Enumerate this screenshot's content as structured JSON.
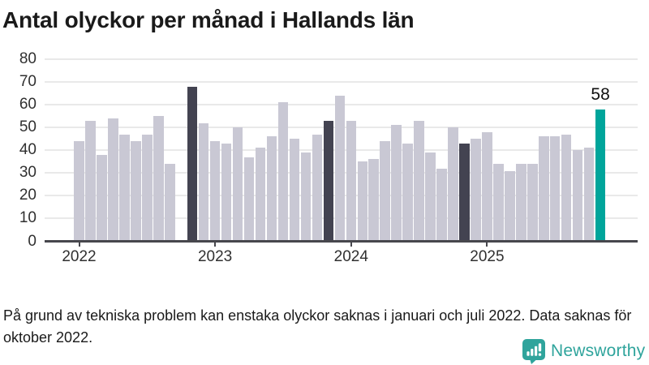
{
  "title": "Antal olyckor per månad i Hallands län",
  "footnote": "På grund av tekniska problem kan enstaka olyckor saknas i januari och juli 2022. Data saknas för oktober 2022.",
  "branding": {
    "name": "Newsworthy",
    "logo_icon": "newsworthy-pin-icon"
  },
  "colors": {
    "bar_default": "#c9c8d4",
    "bar_highlight_dark": "#434351",
    "bar_highlight_current": "#00a59b",
    "axis": "#47474d",
    "gridline": "#e9e9e9",
    "tick_text": "#303030",
    "title_text": "#1a1a1a",
    "logo_teal": "#2fa49c"
  },
  "chart_data": {
    "type": "bar",
    "title": "Antal olyckor per månad i Hallands län",
    "xlabel": "",
    "ylabel": "",
    "ylim": [
      0,
      80
    ],
    "yticks": [
      0,
      10,
      20,
      30,
      40,
      50,
      60,
      70,
      80
    ],
    "grid": true,
    "legend": "none",
    "x_year_ticks": [
      {
        "label": "2022",
        "month_index": 0
      },
      {
        "label": "2023",
        "month_index": 12
      },
      {
        "label": "2024",
        "month_index": 24
      },
      {
        "label": "2025",
        "month_index": 36
      }
    ],
    "months": [
      {
        "month": "2022-01",
        "value": 44
      },
      {
        "month": "2022-02",
        "value": 53
      },
      {
        "month": "2022-03",
        "value": 38
      },
      {
        "month": "2022-04",
        "value": 54
      },
      {
        "month": "2022-05",
        "value": 47
      },
      {
        "month": "2022-06",
        "value": 44
      },
      {
        "month": "2022-07",
        "value": 47
      },
      {
        "month": "2022-08",
        "value": 55
      },
      {
        "month": "2022-09",
        "value": 34
      },
      {
        "month": "2022-10",
        "value": null
      },
      {
        "month": "2022-11",
        "value": 68
      },
      {
        "month": "2022-12",
        "value": 52
      },
      {
        "month": "2023-01",
        "value": 44
      },
      {
        "month": "2023-02",
        "value": 43
      },
      {
        "month": "2023-03",
        "value": 50
      },
      {
        "month": "2023-04",
        "value": 37
      },
      {
        "month": "2023-05",
        "value": 41
      },
      {
        "month": "2023-06",
        "value": 46
      },
      {
        "month": "2023-07",
        "value": 61
      },
      {
        "month": "2023-08",
        "value": 45
      },
      {
        "month": "2023-09",
        "value": 39
      },
      {
        "month": "2023-10",
        "value": 47
      },
      {
        "month": "2023-11",
        "value": 53
      },
      {
        "month": "2023-12",
        "value": 64
      },
      {
        "month": "2024-01",
        "value": 53
      },
      {
        "month": "2024-02",
        "value": 35
      },
      {
        "month": "2024-03",
        "value": 36
      },
      {
        "month": "2024-04",
        "value": 44
      },
      {
        "month": "2024-05",
        "value": 51
      },
      {
        "month": "2024-06",
        "value": 43
      },
      {
        "month": "2024-07",
        "value": 53
      },
      {
        "month": "2024-08",
        "value": 39
      },
      {
        "month": "2024-09",
        "value": 32
      },
      {
        "month": "2024-10",
        "value": 50
      },
      {
        "month": "2024-11",
        "value": 43
      },
      {
        "month": "2024-12",
        "value": 45
      },
      {
        "month": "2025-01",
        "value": 48
      },
      {
        "month": "2025-02",
        "value": 34
      },
      {
        "month": "2025-03",
        "value": 31
      },
      {
        "month": "2025-04",
        "value": 34
      },
      {
        "month": "2025-05",
        "value": 34
      },
      {
        "month": "2025-06",
        "value": 46
      },
      {
        "month": "2025-07",
        "value": 46
      },
      {
        "month": "2025-08",
        "value": 47
      },
      {
        "month": "2025-09",
        "value": 40
      },
      {
        "month": "2025-10",
        "value": 41
      },
      {
        "month": "2025-11",
        "value": 58
      }
    ],
    "highlight_dark_indices": [
      10,
      22,
      34
    ],
    "highlight_current_index": 46,
    "data_label": {
      "month_index": 46,
      "text": "58"
    }
  }
}
